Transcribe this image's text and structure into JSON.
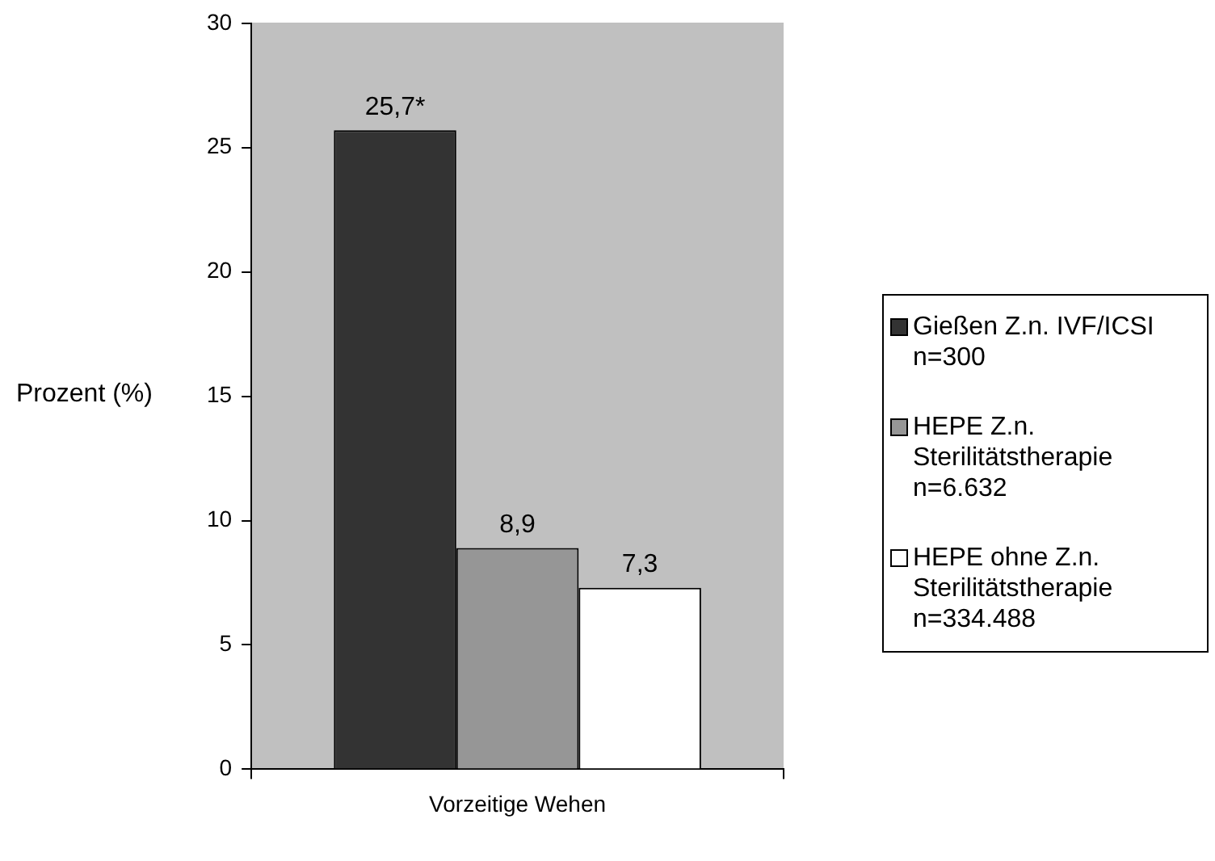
{
  "chart_data": {
    "type": "bar",
    "ylabel": "Prozent (%)",
    "categories": [
      "Vorzeitige Wehen"
    ],
    "series": [
      {
        "name": "Gießen Z.n. IVF/ICSI  n=300",
        "color": "#333333",
        "values": [
          25.7
        ],
        "value_labels": [
          "25,7*"
        ]
      },
      {
        "name": "HEPE Z.n. Sterilitätstherapie n=6.632",
        "color": "#969696",
        "values": [
          8.9
        ],
        "value_labels": [
          "8,9"
        ]
      },
      {
        "name": "HEPE ohne Z.n. Sterilitätstherapie n=334.488",
        "color": "#ffffff",
        "values": [
          7.3
        ],
        "value_labels": [
          "7,3"
        ]
      }
    ],
    "ylim": [
      0,
      30
    ],
    "yticks": [
      0,
      5,
      10,
      15,
      20,
      25,
      30
    ],
    "grid": false,
    "legend": "right"
  }
}
